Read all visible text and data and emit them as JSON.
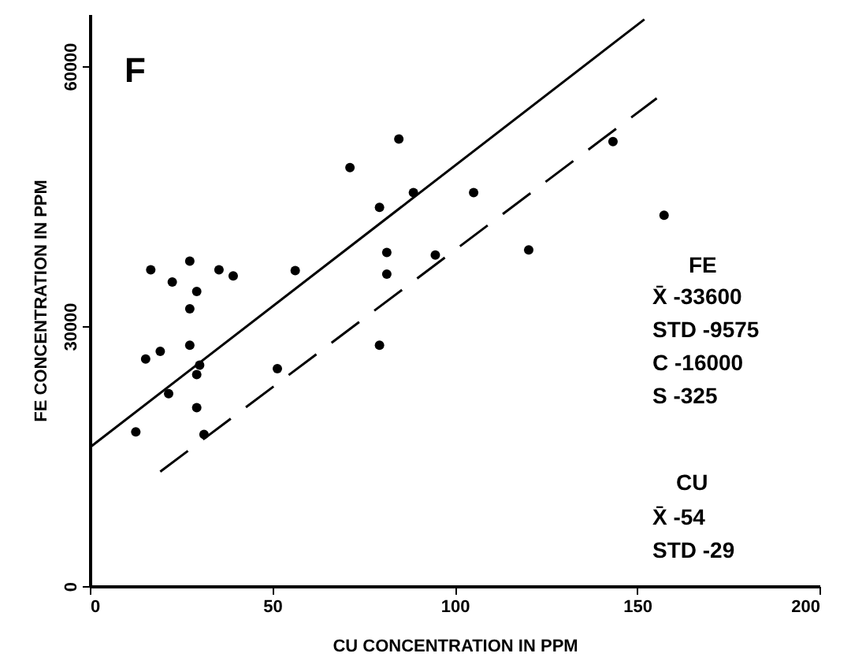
{
  "chart_data": {
    "type": "scatter",
    "xlabel": "CU CONCENTRATION IN PPM",
    "ylabel": "FE CONCENTRATION IN PPM",
    "xlim": [
      0,
      200
    ],
    "xticks": [
      0,
      50,
      100,
      150,
      200
    ],
    "ylim": [
      0,
      66000
    ],
    "yticks": [
      0,
      30000,
      60000
    ],
    "grid": false,
    "marker": "circle",
    "annotations": [
      "F",
      "FE",
      "X̄ -33600",
      "STD -9575",
      "C -16000",
      "S -325",
      "CU",
      "X̄ -54",
      "STD -29"
    ],
    "series": [
      {
        "color": "#000000",
        "x": [
          12.6,
          16.7,
          15.3,
          19.3,
          22.6,
          27.4,
          29.3,
          27.4,
          27.4,
          30.1,
          29.3,
          21.6,
          29.3,
          31.3,
          35.4,
          39.3,
          51.4,
          56.3,
          71.3,
          79.4,
          84.7,
          81.4,
          81.4,
          88.7,
          79.4,
          94.7,
          105.2,
          120.3,
          143.4,
          157.4
        ],
        "values": [
          17800,
          36500,
          26200,
          27100,
          35100,
          37500,
          34000,
          32000,
          27800,
          25500,
          24400,
          22200,
          20600,
          17500,
          36500,
          35800,
          25100,
          36400,
          48300,
          43700,
          51600,
          38500,
          36000,
          45400,
          27800,
          38200,
          45400,
          38800,
          51300,
          42800
        ]
      },
      {
        "type": "line",
        "color": "#000000",
        "line_style": "solid",
        "marker": "none",
        "x": [
          0,
          152
        ],
        "values": [
          16000,
          65400
        ]
      },
      {
        "type": "line",
        "color": "#000000",
        "line_style": "dashed",
        "marker": "none",
        "x": [
          19.3,
          155.4
        ],
        "values": [
          13200,
          56300
        ]
      }
    ]
  }
}
